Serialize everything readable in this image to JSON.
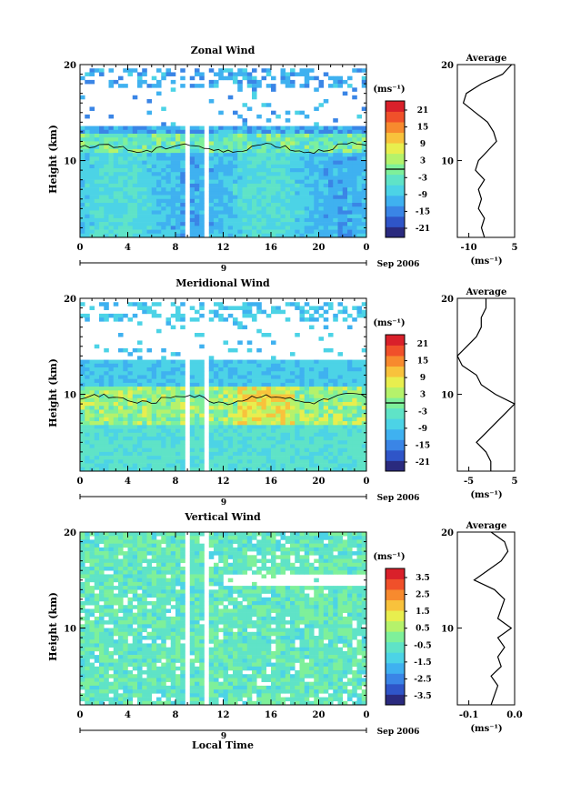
{
  "x_axis_label": "Local Time",
  "date_label": "Sep 2006",
  "day_marker": "9",
  "y_axis_label": "Height (km)",
  "unit_label": "(ms⁻¹)",
  "avg_title": "Average",
  "colors": {
    "scale": [
      "#2a2a7e",
      "#2f55c8",
      "#3a85e6",
      "#3fb1f0",
      "#4cd3e6",
      "#5fe3c7",
      "#7ef09a",
      "#b5f26b",
      "#e8ee4e",
      "#f8c23c",
      "#f78a2e",
      "#f0502a",
      "#d9202a"
    ],
    "contour": "#000000",
    "missing": "#ffffff"
  },
  "panels": [
    {
      "title": "Zonal Wind",
      "colorbar_ticks": [
        "21",
        "15",
        "9",
        "3",
        "-3",
        "-9",
        "-15",
        "-21"
      ],
      "x_ticks": [
        "0",
        "4",
        "8",
        "12",
        "16",
        "20",
        "0"
      ],
      "y_ticks": [
        "20",
        "10"
      ],
      "avg_x_ticks": [
        "-10",
        "5"
      ],
      "avg_y_ticks": [
        "20",
        "10"
      ]
    },
    {
      "title": "Meridional Wind",
      "colorbar_ticks": [
        "21",
        "15",
        "9",
        "3",
        "-3",
        "-9",
        "-15",
        "-21"
      ],
      "x_ticks": [
        "0",
        "4",
        "8",
        "12",
        "16",
        "20",
        "0"
      ],
      "y_ticks": [
        "20",
        "10"
      ],
      "avg_x_ticks": [
        "-5",
        "5"
      ],
      "avg_y_ticks": [
        "20",
        "10"
      ]
    },
    {
      "title": "Vertical Wind",
      "colorbar_ticks": [
        "3.5",
        "2.5",
        "1.5",
        "0.5",
        "-0.5",
        "-1.5",
        "-2.5",
        "-3.5"
      ],
      "x_ticks": [
        "0",
        "4",
        "8",
        "12",
        "16",
        "20",
        "0"
      ],
      "y_ticks": [
        "20",
        "10"
      ],
      "avg_x_ticks": [
        "-0.1",
        "0.0"
      ],
      "avg_y_ticks": [
        "20",
        "10"
      ]
    }
  ],
  "chart_data": [
    {
      "type": "heatmap",
      "title": "Zonal Wind",
      "xlabel": "",
      "ylabel": "Height (km)",
      "x_range_hours": [
        0,
        24
      ],
      "y_range_km": [
        2,
        20
      ],
      "clim": [
        -24,
        24
      ],
      "data_gaps_hours": [
        [
          8.8,
          9.3
        ],
        [
          10.6,
          10.9
        ]
      ],
      "profile": {
        "title": "Average",
        "xlim": [
          -14,
          5
        ],
        "heights_km": [
          2,
          3,
          4,
          5,
          6,
          7,
          8,
          9,
          10,
          11,
          12,
          13,
          14,
          15,
          16,
          17,
          18,
          19,
          20
        ],
        "values": [
          -5,
          -6,
          -5,
          -7,
          -6,
          -7,
          -5,
          -8,
          -7,
          -4,
          -1,
          -2,
          -4,
          -8,
          -12,
          -11,
          -6,
          1,
          4
        ]
      }
    },
    {
      "type": "heatmap",
      "title": "Meridional Wind",
      "xlabel": "",
      "ylabel": "Height (km)",
      "x_range_hours": [
        0,
        24
      ],
      "y_range_km": [
        2,
        20
      ],
      "clim": [
        -24,
        24
      ],
      "data_gaps_hours": [
        [
          8.8,
          9.3
        ],
        [
          10.6,
          10.9
        ]
      ],
      "profile": {
        "title": "Average",
        "xlim": [
          -6,
          6
        ],
        "heights_km": [
          2,
          3,
          4,
          5,
          6,
          7,
          8,
          9,
          10,
          11,
          12,
          13,
          14,
          15,
          16,
          17,
          18,
          19,
          20
        ],
        "values": [
          1,
          1,
          0,
          -2,
          0,
          2,
          4,
          6,
          2,
          -1,
          -2,
          -5,
          -6,
          -4,
          -2,
          -1,
          -1,
          0,
          0
        ]
      }
    },
    {
      "type": "heatmap",
      "title": "Vertical Wind",
      "xlabel": "Local Time",
      "ylabel": "Height (km)",
      "x_range_hours": [
        0,
        24
      ],
      "y_range_km": [
        2,
        20
      ],
      "clim": [
        -4,
        4
      ],
      "data_gaps_hours": [
        [
          8.8,
          9.3
        ],
        [
          10.6,
          10.9
        ]
      ],
      "profile": {
        "title": "Average",
        "xlim": [
          -0.12,
          0.05
        ],
        "heights_km": [
          2,
          3,
          4,
          5,
          6,
          7,
          8,
          9,
          10,
          11,
          12,
          13,
          14,
          15,
          16,
          17,
          18,
          19,
          20
        ],
        "values": [
          -0.02,
          -0.01,
          0.0,
          -0.02,
          0.01,
          0.0,
          0.02,
          0.0,
          0.04,
          0.0,
          0.01,
          0.02,
          -0.01,
          -0.07,
          -0.03,
          0.01,
          0.03,
          0.02,
          -0.02
        ]
      }
    }
  ]
}
